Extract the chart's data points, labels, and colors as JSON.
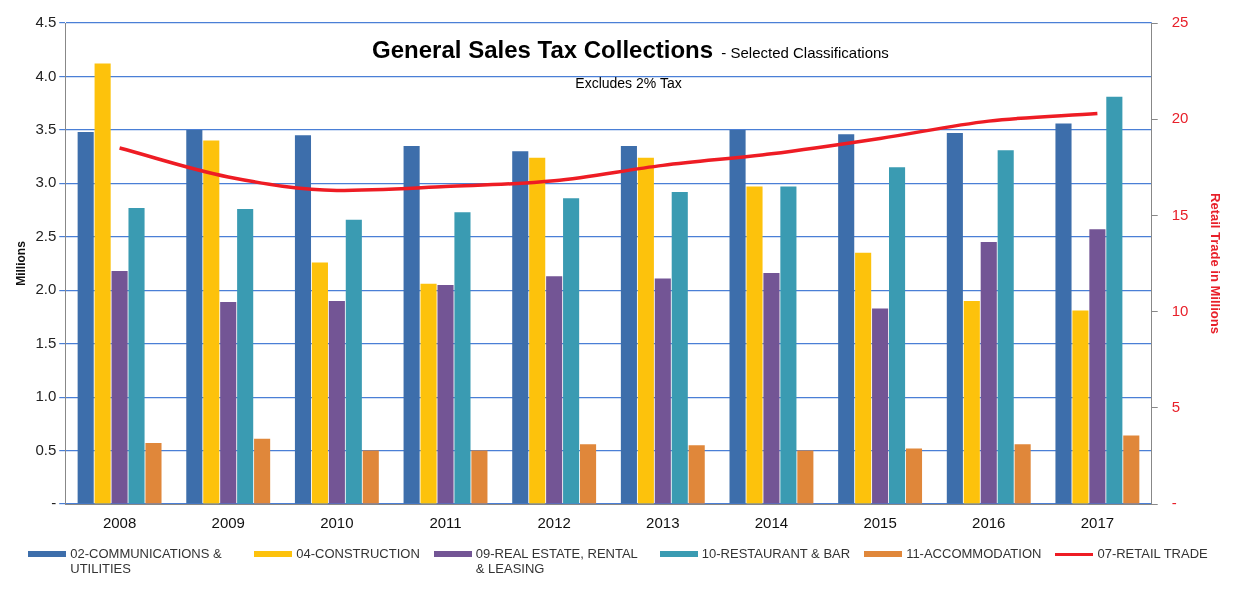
{
  "chart_data": {
    "type": "bar",
    "title": "General Sales Tax Collections",
    "subtitle": "- Selected Classifications",
    "annotations": [
      "Excludes 2% Tax"
    ],
    "ylabel": "Millions",
    "y2label": "Retail Trade in Millions",
    "categories": [
      "2008",
      "2009",
      "2010",
      "2011",
      "2012",
      "2013",
      "2014",
      "2015",
      "2016",
      "2017"
    ],
    "series": [
      {
        "name": "02-COMMUNICATIONS & UTILITIES",
        "color": "#3d6eab",
        "values": [
          3.48,
          3.5,
          3.45,
          3.35,
          3.3,
          3.35,
          3.5,
          3.46,
          3.47,
          3.56
        ]
      },
      {
        "name": "04-CONSTRUCTION",
        "color": "#fdc20c",
        "values": [
          4.12,
          3.4,
          2.26,
          2.06,
          3.24,
          3.24,
          2.97,
          2.35,
          1.9,
          1.81
        ]
      },
      {
        "name": "09-REAL ESTATE, RENTAL & LEASING",
        "color": "#735595",
        "values": [
          2.18,
          1.89,
          1.9,
          2.05,
          2.13,
          2.11,
          2.16,
          1.83,
          2.45,
          2.57
        ]
      },
      {
        "name": "10-RESTAURANT & BAR",
        "color": "#3a9bb2",
        "values": [
          2.77,
          2.76,
          2.66,
          2.73,
          2.86,
          2.92,
          2.97,
          3.15,
          3.31,
          3.81
        ]
      },
      {
        "name": "11-ACCOMMODATION",
        "color": "#e0873a",
        "values": [
          0.57,
          0.61,
          0.5,
          0.5,
          0.56,
          0.55,
          0.5,
          0.52,
          0.56,
          0.64
        ]
      },
      {
        "name": "07-RETAIL TRADE",
        "type": "line",
        "axis": "y2",
        "color": "#ee1c24",
        "values": [
          18.5,
          17.0,
          16.3,
          16.5,
          16.8,
          17.6,
          18.2,
          19.0,
          19.9,
          20.3
        ]
      }
    ],
    "ylim": [
      0,
      4.5
    ],
    "yticks": [
      {
        "value": 0,
        "label": "-"
      },
      0.5,
      {
        "value": 1,
        "label": "1.0"
      },
      1.5,
      {
        "value": 2,
        "label": "2.0"
      },
      2.5,
      {
        "value": 3,
        "label": "3.0"
      },
      3.5,
      {
        "value": 4,
        "label": "4.0"
      },
      4.5
    ],
    "y2lim": [
      0,
      25
    ],
    "y2ticks": [
      {
        "value": 0,
        "label": "-"
      },
      5,
      10,
      15,
      20,
      25
    ],
    "grid": "y",
    "legend": "bottom",
    "marker": "none"
  }
}
